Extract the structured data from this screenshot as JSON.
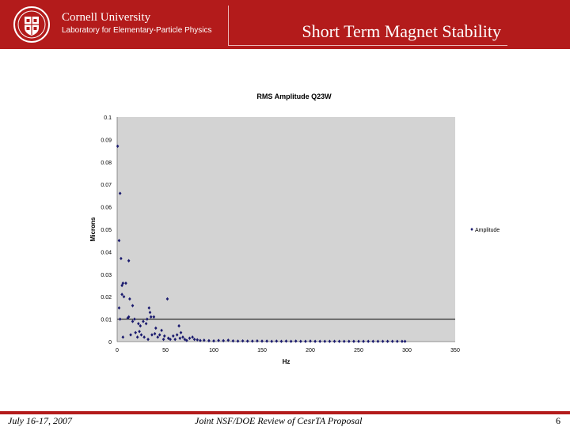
{
  "header": {
    "org_name": "Cornell University",
    "org_lab": "Laboratory for Elementary-Particle Physics",
    "title": "Short Term Magnet Stability",
    "accent": "#b31b1b"
  },
  "footer": {
    "date": "July 16-17, 2007",
    "event": "Joint NSF/DOE Review of CesrTA Proposal",
    "page": "6"
  },
  "chart_data": {
    "type": "scatter",
    "title": "RMS Amplitude Q23W",
    "xlabel": "Hz",
    "ylabel": "Microns",
    "xlim": [
      0,
      350
    ],
    "ylim": [
      0,
      0.1
    ],
    "x_ticks": [
      "0",
      "50",
      "100",
      "150",
      "200",
      "250",
      "300",
      "350"
    ],
    "y_ticks": [
      "0",
      "0.01",
      "0.02",
      "0.03",
      "0.04",
      "0.05",
      "0.06",
      "0.07",
      "0.08",
      "0.09",
      "0.1"
    ],
    "reference_line": 0.01,
    "legend": "right",
    "grid": false,
    "plot_background": "#d3d3d3",
    "marker_color": "#1a1a6e",
    "series": [
      {
        "name": "Amplitude",
        "points": [
          [
            0.5,
            0.087
          ],
          [
            3,
            0.066
          ],
          [
            2,
            0.045
          ],
          [
            4,
            0.037
          ],
          [
            12,
            0.036
          ],
          [
            6,
            0.026
          ],
          [
            9,
            0.026
          ],
          [
            5,
            0.025
          ],
          [
            13,
            0.019
          ],
          [
            5,
            0.021
          ],
          [
            7,
            0.02
          ],
          [
            52,
            0.019
          ],
          [
            2,
            0.015
          ],
          [
            16,
            0.016
          ],
          [
            33,
            0.015
          ],
          [
            34,
            0.013
          ],
          [
            3,
            0.01
          ],
          [
            11,
            0.0105
          ],
          [
            12,
            0.011
          ],
          [
            16,
            0.009
          ],
          [
            18,
            0.01
          ],
          [
            22,
            0.008
          ],
          [
            24,
            0.007
          ],
          [
            27,
            0.009
          ],
          [
            30,
            0.008
          ],
          [
            31,
            0.01
          ],
          [
            35,
            0.011
          ],
          [
            38,
            0.011
          ],
          [
            40,
            0.006
          ],
          [
            46,
            0.005
          ],
          [
            64,
            0.007
          ],
          [
            6,
            0.002
          ],
          [
            14,
            0.003
          ],
          [
            19,
            0.004
          ],
          [
            21,
            0.002
          ],
          [
            23,
            0.0045
          ],
          [
            25,
            0.003
          ],
          [
            28,
            0.002
          ],
          [
            32,
            0.001
          ],
          [
            36,
            0.003
          ],
          [
            39,
            0.0035
          ],
          [
            42,
            0.002
          ],
          [
            44,
            0.003
          ],
          [
            48,
            0.001
          ],
          [
            49,
            0.0025
          ],
          [
            53,
            0.0015
          ],
          [
            55,
            0.001
          ],
          [
            58,
            0.0025
          ],
          [
            60,
            0.001
          ],
          [
            62,
            0.003
          ],
          [
            65,
            0.0015
          ],
          [
            66,
            0.004
          ],
          [
            68,
            0.002
          ],
          [
            70,
            0.001
          ],
          [
            72,
            0.0005
          ],
          [
            75,
            0.0015
          ],
          [
            78,
            0.002
          ],
          [
            80,
            0.001
          ],
          [
            83,
            0.0008
          ],
          [
            86,
            0.0005
          ],
          [
            90,
            0.0006
          ],
          [
            95,
            0.0004
          ],
          [
            100,
            0.0003
          ],
          [
            105,
            0.0005
          ],
          [
            110,
            0.0004
          ],
          [
            115,
            0.0006
          ],
          [
            120,
            0.0003
          ],
          [
            125,
            0.0002
          ],
          [
            130,
            0.0003
          ],
          [
            135,
            0.0002
          ],
          [
            140,
            0.0002
          ],
          [
            145,
            0.0003
          ],
          [
            150,
            0.0002
          ],
          [
            155,
            0.0002
          ],
          [
            160,
            0.0001
          ],
          [
            165,
            0.0002
          ],
          [
            170,
            0.0001
          ],
          [
            175,
            0.0002
          ],
          [
            180,
            0.0001
          ],
          [
            185,
            0.0002
          ],
          [
            190,
            0.0001
          ],
          [
            195,
            0.0001
          ],
          [
            200,
            0.0002
          ],
          [
            205,
            0.0001
          ],
          [
            210,
            0.0001
          ],
          [
            215,
            0.0001
          ],
          [
            220,
            0.0001
          ],
          [
            225,
            0.0001
          ],
          [
            230,
            0.0001
          ],
          [
            235,
            0.0001
          ],
          [
            240,
            0.0001
          ],
          [
            245,
            0.0001
          ],
          [
            250,
            0.0001
          ],
          [
            255,
            0.0001
          ],
          [
            260,
            0.0001
          ],
          [
            265,
            0.0001
          ],
          [
            270,
            0.0001
          ],
          [
            275,
            0.0001
          ],
          [
            280,
            0.0001
          ],
          [
            285,
            0.0001
          ],
          [
            290,
            0.0001
          ],
          [
            295,
            0.0001
          ],
          [
            298,
            0.0001
          ]
        ]
      }
    ]
  }
}
